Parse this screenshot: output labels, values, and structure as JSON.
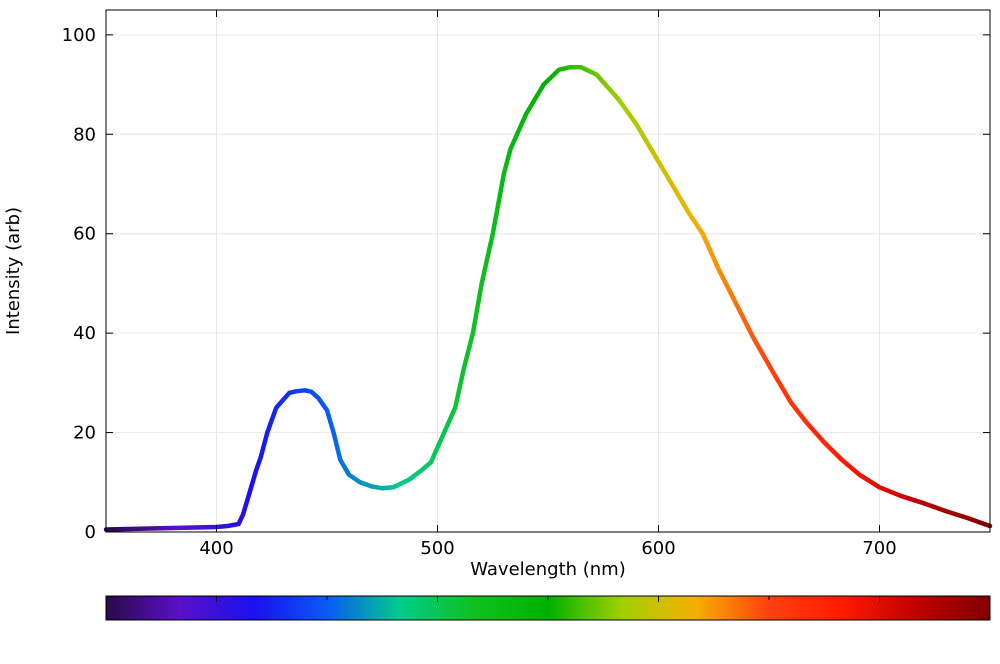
{
  "chart_data": {
    "type": "line",
    "xlabel": "Wavelength (nm)",
    "ylabel": "Intensity (arb)",
    "xlim": [
      350,
      750
    ],
    "ylim": [
      0,
      105
    ],
    "xticks": [
      400,
      500,
      600,
      700
    ],
    "yticks": [
      0,
      20,
      40,
      60,
      80,
      100
    ],
    "grid": true,
    "line_coloring": "by wavelength (visible spectrum colormap)",
    "colorbar": {
      "orientation": "horizontal",
      "position": "bottom",
      "stops": [
        "#2a0a4a",
        "#5a0fc8",
        "#1a10f0",
        "#0a5af5",
        "#00cc88",
        "#10c020",
        "#00b000",
        "#a0d000",
        "#f5b000",
        "#ff4010",
        "#ff1a00",
        "#c00000",
        "#800000"
      ]
    },
    "series": [
      {
        "x": [
          350,
          360,
          370,
          380,
          390,
          400,
          405,
          410,
          412,
          415,
          418,
          420,
          423,
          427,
          430,
          433,
          436,
          440,
          443,
          446,
          450,
          453,
          456,
          460,
          465,
          470,
          475,
          480,
          487,
          493,
          497,
          500,
          503,
          508,
          512,
          516,
          520,
          525,
          530,
          533,
          540,
          548,
          555,
          560,
          565,
          572,
          582,
          590,
          598,
          606,
          614,
          620,
          627,
          635,
          643,
          652,
          660,
          667,
          675,
          683,
          691,
          700,
          710,
          720,
          730,
          740,
          745,
          750
        ],
        "y": [
          0.5,
          0.6,
          0.7,
          0.8,
          0.9,
          1.0,
          1.2,
          1.6,
          3.5,
          8.0,
          12.5,
          15.0,
          20.0,
          25.0,
          26.5,
          28.0,
          28.3,
          28.5,
          28.2,
          27.0,
          24.5,
          20.0,
          14.5,
          11.5,
          10.0,
          9.2,
          8.8,
          9.0,
          10.5,
          12.5,
          14.0,
          17.0,
          20.0,
          25.0,
          33.0,
          40.0,
          50.0,
          60.0,
          72.0,
          77.0,
          84.0,
          90.0,
          93.0,
          93.5,
          93.5,
          92.0,
          87.0,
          82.0,
          76.0,
          70.0,
          64.0,
          60.0,
          53.0,
          46.0,
          39.0,
          32.0,
          26.0,
          22.0,
          18.0,
          14.5,
          11.5,
          9.0,
          7.2,
          5.8,
          4.2,
          2.8,
          2.0,
          1.2
        ]
      }
    ]
  }
}
